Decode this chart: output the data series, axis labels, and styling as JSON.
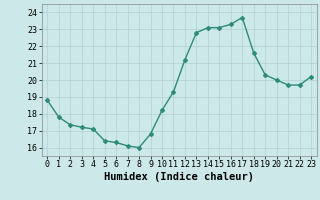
{
  "x": [
    0,
    1,
    2,
    3,
    4,
    5,
    6,
    7,
    8,
    9,
    10,
    11,
    12,
    13,
    14,
    15,
    16,
    17,
    18,
    19,
    20,
    21,
    22,
    23
  ],
  "y": [
    18.8,
    17.8,
    17.35,
    17.2,
    17.1,
    16.4,
    16.3,
    16.1,
    16.0,
    16.8,
    18.2,
    19.3,
    21.2,
    22.8,
    23.1,
    23.1,
    23.3,
    23.7,
    21.6,
    20.3,
    20.0,
    19.7,
    19.7,
    20.2
  ],
  "xlabel": "Humidex (Indice chaleur)",
  "ylim": [
    15.5,
    24.5
  ],
  "yticks": [
    16,
    17,
    18,
    19,
    20,
    21,
    22,
    23,
    24
  ],
  "xticks": [
    0,
    1,
    2,
    3,
    4,
    5,
    6,
    7,
    8,
    9,
    10,
    11,
    12,
    13,
    14,
    15,
    16,
    17,
    18,
    19,
    20,
    21,
    22,
    23
  ],
  "xtick_labels": [
    "0",
    "1",
    "2",
    "3",
    "4",
    "5",
    "6",
    "7",
    "8",
    "9",
    "10",
    "11",
    "12",
    "13",
    "14",
    "15",
    "16",
    "17",
    "18",
    "19",
    "20",
    "21",
    "22",
    "23"
  ],
  "line_color": "#2e8b7a",
  "marker": "D",
  "marker_size": 2.0,
  "bg_color": "#cce8e8",
  "grid_color": "#b0d0d0",
  "xlabel_fontsize": 7.5,
  "tick_fontsize": 6.0,
  "line_width": 1.0,
  "xlim": [
    -0.5,
    23.5
  ]
}
